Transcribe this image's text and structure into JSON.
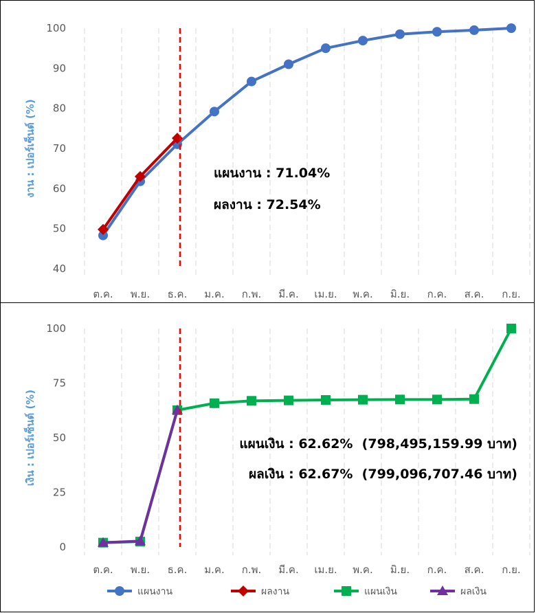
{
  "chart_data": [
    {
      "type": "line",
      "ylabel": "งาน : เปอร์เซ็นต์ (%)",
      "ylim": [
        40,
        100
      ],
      "yticks": [
        40,
        50,
        60,
        70,
        80,
        90,
        100
      ],
      "categories": [
        "ต.ค.",
        "พ.ย.",
        "ธ.ค.",
        "ม.ค.",
        "ก.พ.",
        "มี.ค.",
        "เม.ย.",
        "พ.ค.",
        "มิ.ย.",
        "ก.ค.",
        "ส.ค.",
        "ก.ย."
      ],
      "grid": "vertical dashed",
      "marker_line_category": "ธ.ค.",
      "series": [
        {
          "name": "แผนงาน",
          "color": "#4472c4",
          "marker": "circle",
          "values": [
            48.3,
            61.8,
            71.04,
            79.2,
            86.7,
            91.0,
            95.0,
            96.9,
            98.5,
            99.1,
            99.5,
            100
          ]
        },
        {
          "name": "ผลงาน",
          "color": "#c00000",
          "marker": "diamond",
          "values": [
            49.8,
            63.0,
            72.54,
            null,
            null,
            null,
            null,
            null,
            null,
            null,
            null,
            null
          ]
        }
      ],
      "annotations": [
        "แผนงาน : 71.04%",
        "ผลงาน : 72.54%"
      ]
    },
    {
      "type": "line",
      "ylabel": "เงิน : เปอร์เซ็นต์ (%)",
      "ylim": [
        0,
        100
      ],
      "yticks": [
        0,
        25,
        50,
        75,
        100
      ],
      "categories": [
        "ต.ค.",
        "พ.ย.",
        "ธ.ค.",
        "ม.ค.",
        "ก.พ.",
        "มี.ค.",
        "เม.ย.",
        "พ.ค.",
        "มิ.ย.",
        "ก.ค.",
        "ส.ค.",
        "ก.ย."
      ],
      "grid": "vertical dashed",
      "marker_line_category": "ธ.ค.",
      "series": [
        {
          "name": "แผนเงิน",
          "color": "#00b050",
          "marker": "square",
          "values": [
            2.0,
            2.5,
            62.62,
            65.8,
            66.9,
            67.1,
            67.3,
            67.4,
            67.5,
            67.5,
            67.7,
            100
          ]
        },
        {
          "name": "ผลเงิน",
          "color": "#7030a0",
          "marker": "triangle",
          "values": [
            2.0,
            2.7,
            62.67,
            null,
            null,
            null,
            null,
            null,
            null,
            null,
            null,
            null
          ]
        }
      ],
      "annotations": [
        "แผนเงิน : 62.62%  (798,495,159.99 บาท)",
        "ผลเงิน : 62.67%  (799,096,707.46 บาท)"
      ]
    }
  ],
  "legend": [
    {
      "name": "แผนงาน",
      "color": "#4472c4",
      "marker": "circle"
    },
    {
      "name": "ผลงาน",
      "color": "#c00000",
      "marker": "diamond"
    },
    {
      "name": "แผนเงิน",
      "color": "#00b050",
      "marker": "square"
    },
    {
      "name": "ผลเงิน",
      "color": "#7030a0",
      "marker": "triangle"
    }
  ]
}
